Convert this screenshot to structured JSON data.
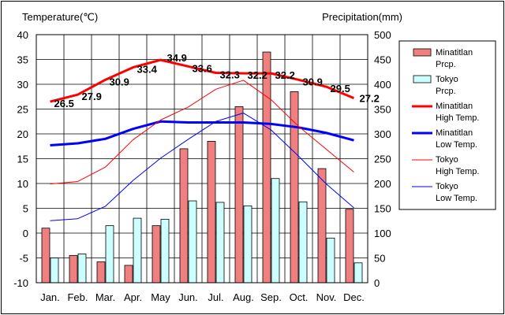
{
  "chart_data": {
    "type": "bar+line",
    "categories": [
      "Jan.",
      "Feb.",
      "Mar.",
      "Apr.",
      "May",
      "Jun.",
      "Jul.",
      "Aug.",
      "Sep.",
      "Oct.",
      "Nov.",
      "Dec."
    ],
    "y_left": {
      "label": "Temperature(℃)",
      "range": [
        -10,
        40
      ],
      "ticks": [
        -10,
        -5,
        0,
        5,
        10,
        15,
        20,
        25,
        30,
        35,
        40
      ]
    },
    "y_right": {
      "label": "Precipitation(mm)",
      "range": [
        0,
        500
      ],
      "ticks": [
        0,
        50,
        100,
        150,
        200,
        250,
        300,
        350,
        400,
        450,
        500
      ]
    },
    "grid": true,
    "legend_position": "right",
    "bars": [
      {
        "name": "Minatitlan\nPrcp.",
        "color": "#f08080",
        "values": [
          110,
          55,
          42,
          35,
          115,
          270,
          285,
          355,
          465,
          385,
          230,
          148
        ]
      },
      {
        "name": "Tokyo\nPrcp.",
        "color": "#ccffff",
        "values": [
          50,
          58,
          115,
          130,
          128,
          165,
          162,
          155,
          210,
          163,
          90,
          40
        ]
      }
    ],
    "lines": [
      {
        "name": "Minatitlan\nHigh Temp.",
        "color": "#ff0000",
        "width": 3,
        "values": [
          26.5,
          27.9,
          30.9,
          33.4,
          34.9,
          33.6,
          32.3,
          32.2,
          32.2,
          30.9,
          29.5,
          27.2
        ],
        "labels": [
          "26.5",
          "27.9",
          "30.9",
          "33.4",
          "34.9",
          "33.6",
          "32.3",
          "32.2",
          "32.2",
          "30.9",
          "29.5",
          "27.2"
        ]
      },
      {
        "name": "Minatitlan\nLow Temp.",
        "color": "#0000ff",
        "width": 3,
        "values": [
          17.7,
          18.1,
          19.0,
          21.0,
          22.5,
          22.3,
          22.3,
          22.3,
          22.0,
          21.3,
          20.2,
          18.7
        ]
      },
      {
        "name": "Tokyo\nHigh Temp.",
        "color": "#ff0000",
        "width": 1,
        "values": [
          9.9,
          10.4,
          13.3,
          18.8,
          22.8,
          25.4,
          29.0,
          30.8,
          26.9,
          21.5,
          16.9,
          12.3
        ]
      },
      {
        "name": "Tokyo\nLow Temp.",
        "color": "#0000ff",
        "width": 1,
        "values": [
          2.5,
          2.9,
          5.4,
          10.6,
          15.1,
          18.9,
          22.5,
          24.2,
          20.8,
          15.5,
          9.9,
          5.1
        ]
      }
    ]
  }
}
